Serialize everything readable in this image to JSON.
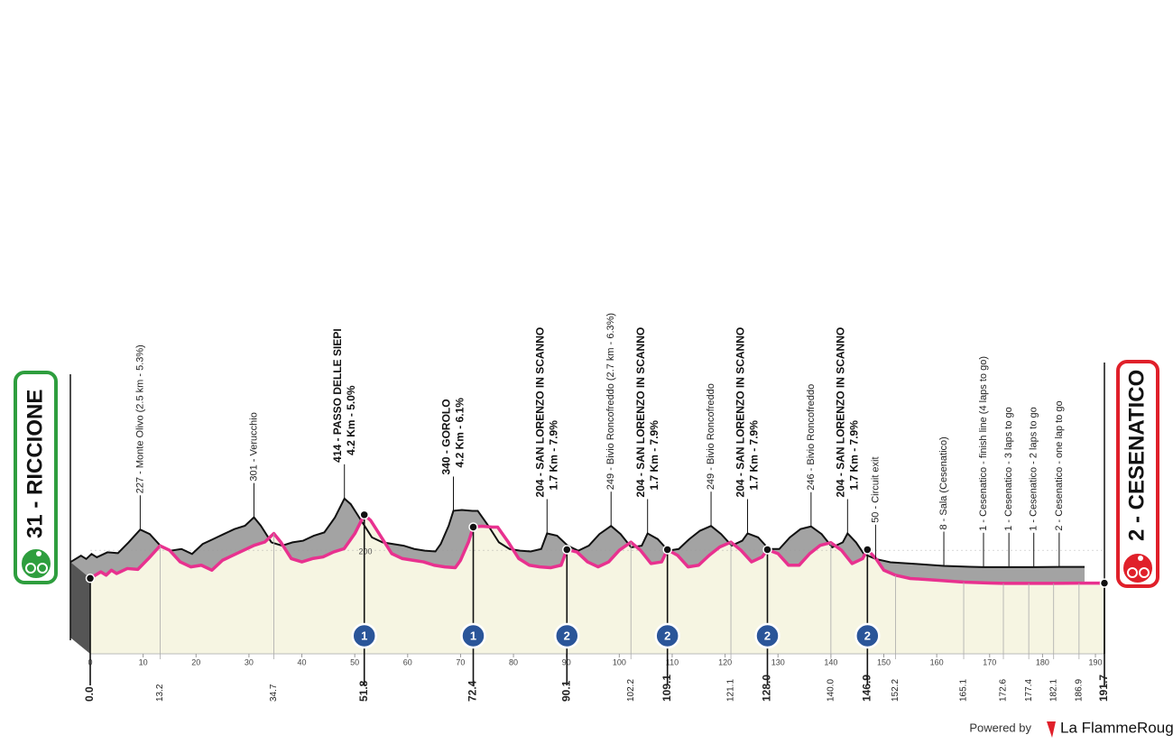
{
  "chart_data": {
    "type": "area",
    "color": "#e8318f",
    "start": "31 - RICCIONE",
    "finish": "2 - CESENATICO",
    "xlim": [
      0,
      191.7
    ],
    "xticks": [
      0,
      10,
      20,
      30,
      40,
      50,
      60,
      70,
      80,
      90,
      100,
      110,
      120,
      130,
      140,
      150,
      160,
      170,
      180,
      190
    ],
    "ylim": [
      0,
      500
    ],
    "yticks": [
      200
    ],
    "x": [
      0,
      2,
      3,
      4,
      5,
      7,
      9,
      11,
      13.2,
      15,
      17,
      19,
      21,
      23,
      25,
      27,
      29,
      31,
      33,
      34.7,
      36,
      38,
      40,
      42,
      44,
      46,
      48,
      50,
      51.8,
      53,
      55,
      57,
      59,
      61,
      63,
      65,
      67,
      69,
      70,
      71.5,
      72.4,
      74,
      76,
      77,
      79,
      81,
      83,
      85,
      87,
      89,
      90.1,
      92,
      94,
      96,
      98,
      100,
      102.2,
      104,
      106,
      108,
      109.1,
      111,
      113,
      115,
      117,
      119,
      121.1,
      123,
      125,
      127,
      128,
      130,
      132,
      134,
      136,
      138,
      140,
      142,
      144,
      146,
      146.9,
      148.5,
      150,
      152.2,
      155,
      160,
      165.1,
      170,
      172.6,
      177.4,
      182.1,
      186.9,
      191.7
    ],
    "values": [
      31,
      70,
      50,
      80,
      60,
      90,
      85,
      150,
      227,
      200,
      130,
      100,
      110,
      80,
      140,
      170,
      200,
      230,
      250,
      301,
      250,
      150,
      130,
      150,
      160,
      190,
      210,
      300,
      414,
      380,
      280,
      180,
      150,
      140,
      130,
      110,
      100,
      95,
      140,
      250,
      340,
      345,
      340,
      340,
      250,
      150,
      110,
      100,
      95,
      110,
      204,
      190,
      130,
      100,
      130,
      200,
      249,
      200,
      120,
      130,
      204,
      170,
      100,
      110,
      170,
      220,
      249,
      200,
      130,
      160,
      204,
      180,
      110,
      110,
      180,
      230,
      246,
      200,
      120,
      150,
      204,
      150,
      80,
      50,
      30,
      20,
      8,
      3,
      1,
      1,
      1,
      2,
      2
    ],
    "waypoints": [
      {
        "km": {
          "value": 0,
          "label": "0.0"
        }
      },
      {
        "km": 13.2,
        "name": "227 - Monte Olivo (2.5 km - 5.3%)"
      },
      {
        "km": 34.7,
        "name": "301 - Verucchio"
      },
      {
        "km": 51.8,
        "name": "414 - PASSO DELLE SIEPI",
        "detail": "4.2 Km - 5.0%",
        "climb": 1
      },
      {
        "km": 72.4,
        "name": "340 - GOROLO",
        "detail": "4.2 Km - 6.1%",
        "climb": 1
      },
      {
        "km": 90.1,
        "name": "204 - SAN LORENZO IN SCANNO",
        "detail": "1.7 Km - 7.9%",
        "climb": 2
      },
      {
        "km": 102.2,
        "name": "249 - Bivio Roncofreddo (2.7 km - 6.3%)"
      },
      {
        "km": 109.1,
        "name": "204 - SAN LORENZO IN SCANNO",
        "detail": "1.7 Km - 7.9%",
        "climb": 2
      },
      {
        "km": 121.1,
        "name": "249 - Bivio Roncofreddo"
      },
      {
        "km": {
          "value": 128,
          "label": "128.0"
        },
        "name": "204 - SAN LORENZO IN SCANNO",
        "detail": "1.7 Km - 7.9%",
        "climb": 2
      },
      {
        "km": {
          "value": 140,
          "label": "140.0"
        },
        "name": "246 - Bivio Roncofreddo"
      },
      {
        "km": 146.9,
        "name": "204 - SAN LORENZO IN SCANNO",
        "detail": "1.7 Km - 7.9%",
        "climb": 2
      },
      {
        "km": 152.2,
        "name": "50 - Circuit exit"
      },
      {
        "km": 165.1,
        "name": "8 - Sala (Cesenatico)"
      },
      {
        "km": 172.6,
        "name": "1 - Cesenatico - finish line (4 laps to go)"
      },
      {
        "km": 177.4,
        "name": "1 - Cesenatico - 3 laps to go"
      },
      {
        "km": 182.1,
        "name": "1 - Cesenatico - 2 laps to go"
      },
      {
        "km": 186.9,
        "name": "2 - Cesenatico - one lap to go"
      },
      {
        "km": 191.7
      }
    ]
  },
  "footer": {
    "powered": "Powered by",
    "brand": "La FlammeRouge"
  }
}
